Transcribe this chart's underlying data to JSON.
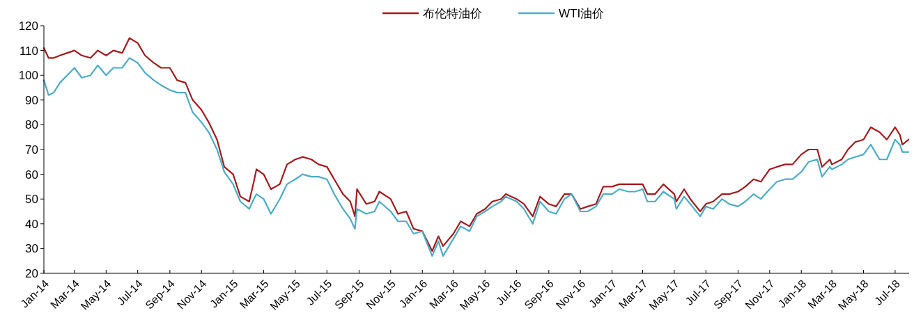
{
  "chart_data": {
    "type": "line",
    "legend": "top",
    "grid": false,
    "line_style": "solid",
    "x": [
      "2014-01-01",
      "2014-01-10",
      "2014-01-20",
      "2014-02-01",
      "2014-02-15",
      "2014-03-01",
      "2014-03-15",
      "2014-04-01",
      "2014-04-15",
      "2014-05-01",
      "2014-05-15",
      "2014-06-01",
      "2014-06-15",
      "2014-07-01",
      "2014-07-15",
      "2014-08-01",
      "2014-08-15",
      "2014-09-01",
      "2014-09-15",
      "2014-10-01",
      "2014-10-15",
      "2014-11-01",
      "2014-11-15",
      "2014-12-01",
      "2014-12-15",
      "2015-01-01",
      "2015-01-15",
      "2015-02-01",
      "2015-02-10",
      "2015-02-15",
      "2015-03-01",
      "2015-03-15",
      "2015-04-01",
      "2015-04-15",
      "2015-05-01",
      "2015-05-15",
      "2015-06-01",
      "2015-06-15",
      "2015-07-01",
      "2015-07-15",
      "2015-08-01",
      "2015-08-15",
      "2015-08-24",
      "2015-08-28",
      "2015-09-15",
      "2015-10-01",
      "2015-10-10",
      "2015-11-01",
      "2015-11-15",
      "2015-12-01",
      "2015-12-15",
      "2016-01-01",
      "2016-01-20",
      "2016-02-01",
      "2016-02-10",
      "2016-03-01",
      "2016-03-15",
      "2016-04-01",
      "2016-04-15",
      "2016-05-01",
      "2016-05-15",
      "2016-06-01",
      "2016-06-10",
      "2016-07-01",
      "2016-07-15",
      "2016-08-01",
      "2016-08-15",
      "2016-09-01",
      "2016-09-15",
      "2016-10-01",
      "2016-10-15",
      "2016-11-01",
      "2016-11-15",
      "2016-12-01",
      "2016-12-15",
      "2017-01-01",
      "2017-01-15",
      "2017-02-01",
      "2017-02-15",
      "2017-03-01",
      "2017-03-10",
      "2017-03-25",
      "2017-04-10",
      "2017-05-01",
      "2017-05-05",
      "2017-05-20",
      "2017-06-01",
      "2017-06-20",
      "2017-07-01",
      "2017-07-15",
      "2017-08-01",
      "2017-08-15",
      "2017-09-01",
      "2017-09-15",
      "2017-10-01",
      "2017-10-15",
      "2017-11-01",
      "2017-11-15",
      "2017-12-01",
      "2017-12-15",
      "2018-01-01",
      "2018-01-15",
      "2018-02-01",
      "2018-02-10",
      "2018-02-25",
      "2018-03-01",
      "2018-03-20",
      "2018-04-01",
      "2018-04-15",
      "2018-05-01",
      "2018-05-15",
      "2018-06-01",
      "2018-06-15",
      "2018-07-01",
      "2018-07-10",
      "2018-07-15",
      "2018-07-27"
    ],
    "series": [
      {
        "name": "布伦特油价",
        "color": "#a31a1c",
        "values": [
          111,
          107,
          107,
          108,
          109,
          110,
          108,
          107,
          110,
          108,
          110,
          109,
          115,
          113,
          108,
          105,
          103,
          103,
          98,
          97,
          90,
          86,
          81,
          74,
          63,
          60,
          51,
          49,
          57,
          62,
          60,
          54,
          56,
          64,
          66,
          67,
          66,
          64,
          63,
          58,
          52,
          49,
          43,
          54,
          48,
          49,
          53,
          50,
          44,
          45,
          38,
          37,
          29,
          35,
          31,
          36,
          41,
          39,
          44,
          46,
          49,
          50,
          52,
          50,
          48,
          43,
          51,
          48,
          47,
          52,
          52,
          46,
          47,
          48,
          55,
          55,
          56,
          56,
          56,
          56,
          52,
          52,
          56,
          52,
          49,
          54,
          50,
          45,
          48,
          49,
          52,
          52,
          53,
          55,
          58,
          57,
          62,
          63,
          64,
          64,
          68,
          70,
          70,
          63,
          66,
          64,
          66,
          70,
          73,
          74,
          79,
          77,
          74,
          79,
          76,
          72,
          74
        ]
      },
      {
        "name": "WTI油价",
        "color": "#4bacc6",
        "values": [
          98,
          92,
          93,
          97,
          100,
          103,
          99,
          100,
          104,
          100,
          103,
          103,
          107,
          105,
          101,
          98,
          96,
          94,
          93,
          93,
          85,
          81,
          77,
          70,
          61,
          56,
          49,
          46,
          50,
          52,
          50,
          44,
          50,
          56,
          58,
          60,
          59,
          59,
          58,
          52,
          46,
          42,
          38,
          46,
          44,
          45,
          49,
          45,
          41,
          41,
          36,
          37,
          27,
          33,
          27,
          34,
          39,
          37,
          43,
          45,
          47,
          49,
          51,
          49,
          46,
          40,
          49,
          45,
          44,
          50,
          52,
          45,
          45,
          47,
          52,
          52,
          54,
          53,
          53,
          54,
          49,
          49,
          53,
          50,
          46,
          51,
          48,
          43,
          47,
          46,
          50,
          48,
          47,
          49,
          52,
          50,
          54,
          57,
          58,
          58,
          61,
          65,
          66,
          59,
          63,
          62,
          64,
          66,
          67,
          68,
          72,
          66,
          66,
          74,
          72,
          69,
          69
        ]
      }
    ],
    "xlim": [
      "2014-01-01",
      "2018-07-28"
    ],
    "xticks": [
      {
        "value": "2014-01-01",
        "label": "Jan-14"
      },
      {
        "value": "2014-03-01",
        "label": "Mar-14"
      },
      {
        "value": "2014-05-01",
        "label": "May-14"
      },
      {
        "value": "2014-07-01",
        "label": "Jul-14"
      },
      {
        "value": "2014-09-01",
        "label": "Sep-14"
      },
      {
        "value": "2014-11-01",
        "label": "Nov-14"
      },
      {
        "value": "2015-01-01",
        "label": "Jan-15"
      },
      {
        "value": "2015-03-01",
        "label": "Mar-15"
      },
      {
        "value": "2015-05-01",
        "label": "May-15"
      },
      {
        "value": "2015-07-01",
        "label": "Jul-15"
      },
      {
        "value": "2015-09-01",
        "label": "Sep-15"
      },
      {
        "value": "2015-11-01",
        "label": "Nov-15"
      },
      {
        "value": "2016-01-01",
        "label": "Jan-16"
      },
      {
        "value": "2016-03-01",
        "label": "Mar-16"
      },
      {
        "value": "2016-05-01",
        "label": "May-16"
      },
      {
        "value": "2016-07-01",
        "label": "Jul-16"
      },
      {
        "value": "2016-09-01",
        "label": "Sep-16"
      },
      {
        "value": "2016-11-01",
        "label": "Nov-16"
      },
      {
        "value": "2017-01-01",
        "label": "Jan-17"
      },
      {
        "value": "2017-03-01",
        "label": "Mar-17"
      },
      {
        "value": "2017-05-01",
        "label": "May-17"
      },
      {
        "value": "2017-07-01",
        "label": "Jul-17"
      },
      {
        "value": "2017-09-01",
        "label": "Sep-17"
      },
      {
        "value": "2017-11-01",
        "label": "Nov-17"
      },
      {
        "value": "2018-01-01",
        "label": "Jan-18"
      },
      {
        "value": "2018-03-01",
        "label": "Mar-18"
      },
      {
        "value": "2018-05-01",
        "label": "May-18"
      },
      {
        "value": "2018-07-01",
        "label": "Jul-18"
      }
    ],
    "ylim": [
      20,
      120
    ],
    "yticks": [
      20,
      30,
      40,
      50,
      60,
      70,
      80,
      90,
      100,
      110,
      120
    ]
  }
}
